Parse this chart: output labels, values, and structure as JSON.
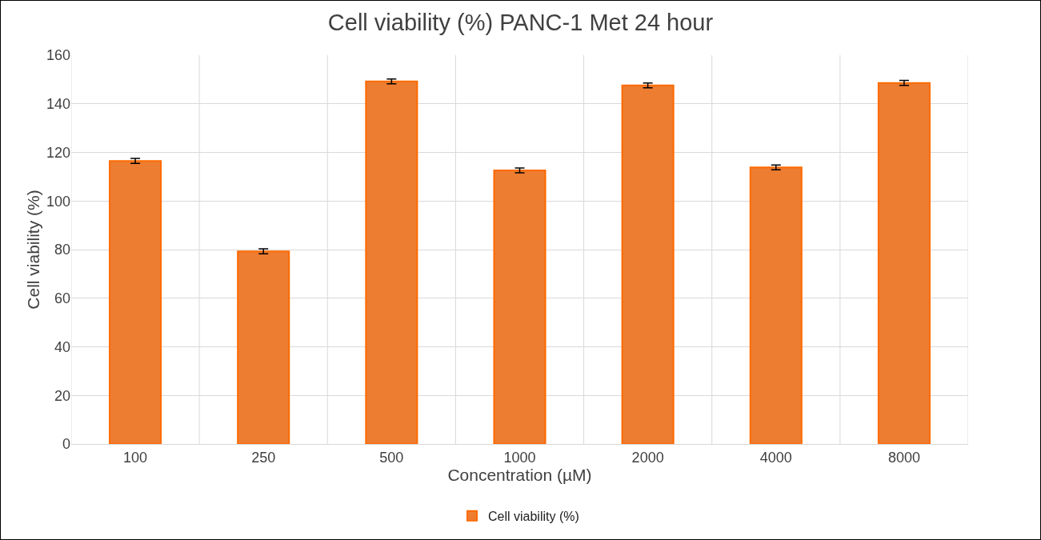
{
  "chart_data": {
    "type": "bar",
    "title": "Cell viability (%) PANC-1 Met 24 hour",
    "xlabel": "Concentration (µM)",
    "ylabel": "Cell viability (%)",
    "categories": [
      "100",
      "250",
      "500",
      "1000",
      "2000",
      "4000",
      "8000"
    ],
    "series": [
      {
        "name": "Cell viability (%)",
        "color": "#ed7d31",
        "values": [
          116.5,
          79.3,
          149.2,
          112.6,
          147.6,
          113.8,
          148.6
        ],
        "errors": [
          1,
          1,
          1,
          1,
          1,
          1,
          1
        ]
      }
    ],
    "ylim": [
      0,
      160
    ],
    "yticks": [
      0,
      20,
      40,
      60,
      80,
      100,
      120,
      140,
      160
    ],
    "grid": true,
    "legend": "bottom"
  }
}
